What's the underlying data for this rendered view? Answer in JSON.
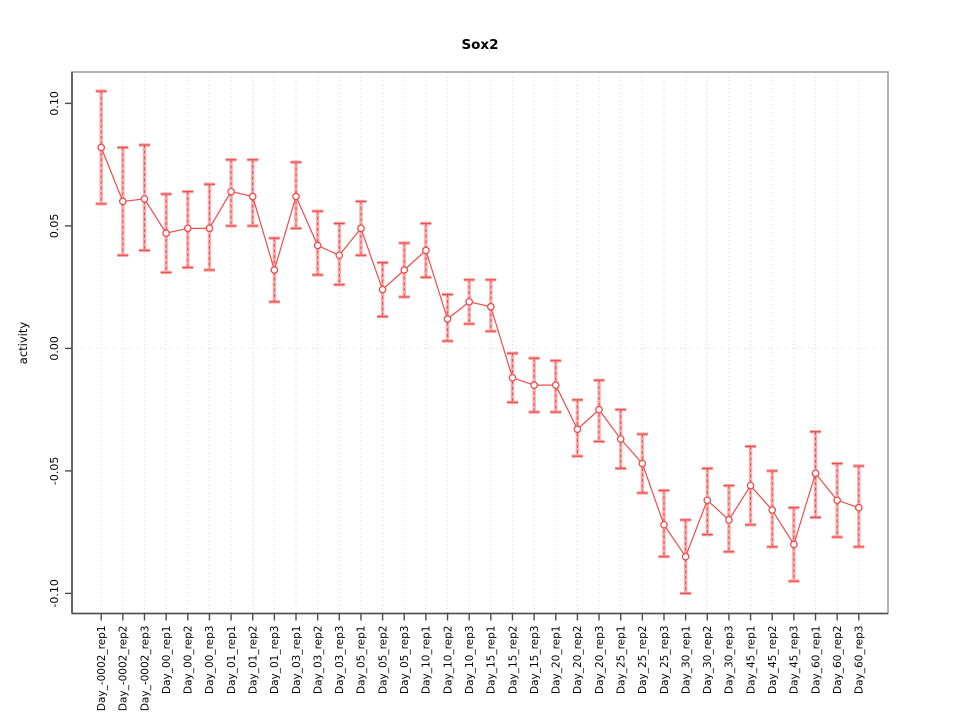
{
  "window": {
    "background": "#ffffff"
  },
  "chart_data": {
    "type": "line",
    "subtype": "points-with-error-bars",
    "title": "Sox2",
    "xlabel": "",
    "ylabel": "activity",
    "legend": "none",
    "grid": {
      "vertical": "dotted-at-every-category",
      "horizontal": "dotted-at-zero-only"
    },
    "ylim": [
      -0.112,
      0.112
    ],
    "yticks": [
      -0.1,
      -0.05,
      0.0,
      0.05,
      0.1
    ],
    "ytick_labels": [
      "-0.10",
      "-0.05",
      "0.00",
      "0.05",
      "0.10"
    ],
    "categories": [
      "Day_-0002_rep1",
      "Day_-0002_rep2",
      "Day_-0002_rep3",
      "Day_00_rep1",
      "Day_00_rep2",
      "Day_00_rep3",
      "Day_01_rep1",
      "Day_01_rep2",
      "Day_01_rep3",
      "Day_03_rep1",
      "Day_03_rep2",
      "Day_03_rep3",
      "Day_05_rep1",
      "Day_05_rep2",
      "Day_05_rep3",
      "Day_10_rep1",
      "Day_10_rep2",
      "Day_10_rep3",
      "Day_15_rep1",
      "Day_15_rep2",
      "Day_15_rep3",
      "Day_20_rep1",
      "Day_20_rep2",
      "Day_20_rep3",
      "Day_25_rep1",
      "Day_25_rep2",
      "Day_25_rep3",
      "Day_30_rep1",
      "Day_30_rep2",
      "Day_30_rep3",
      "Day_45_rep1",
      "Day_45_rep2",
      "Day_45_rep3",
      "Day_60_rep1",
      "Day_60_rep2",
      "Day_60_rep3"
    ],
    "series": [
      {
        "name": "activity",
        "values": [
          0.082,
          0.06,
          0.061,
          0.047,
          0.049,
          0.049,
          0.064,
          0.062,
          0.032,
          0.062,
          0.042,
          0.038,
          0.049,
          0.024,
          0.032,
          0.04,
          0.012,
          0.019,
          0.017,
          -0.012,
          -0.015,
          -0.015,
          -0.033,
          -0.025,
          -0.037,
          -0.047,
          -0.072,
          -0.085,
          -0.062,
          -0.07,
          -0.056,
          -0.066,
          -0.08,
          -0.051,
          -0.062,
          -0.065
        ],
        "error_upper": [
          0.105,
          0.082,
          0.083,
          0.063,
          0.064,
          0.067,
          0.077,
          0.077,
          0.045,
          0.076,
          0.056,
          0.051,
          0.06,
          0.035,
          0.043,
          0.051,
          0.022,
          0.028,
          0.028,
          -0.002,
          -0.004,
          -0.005,
          -0.021,
          -0.013,
          -0.025,
          -0.035,
          -0.058,
          -0.07,
          -0.049,
          -0.056,
          -0.04,
          -0.05,
          -0.065,
          -0.034,
          -0.047,
          -0.048
        ],
        "error_lower": [
          0.059,
          0.038,
          0.04,
          0.031,
          0.033,
          0.032,
          0.05,
          0.05,
          0.019,
          0.049,
          0.03,
          0.026,
          0.038,
          0.013,
          0.021,
          0.029,
          0.003,
          0.01,
          0.007,
          -0.022,
          -0.026,
          -0.026,
          -0.044,
          -0.038,
          -0.049,
          -0.059,
          -0.085,
          -0.1,
          -0.076,
          -0.083,
          -0.072,
          -0.081,
          -0.095,
          -0.069,
          -0.077,
          -0.081
        ]
      }
    ],
    "colors": {
      "point_and_line": "#ef4b4b",
      "error_bar_soft": "#f7abab",
      "grid_dots": "#d9d9d9",
      "frame": "#999999",
      "axis": "#4d4d4d",
      "text": "#000000",
      "background": "#ffffff"
    }
  }
}
